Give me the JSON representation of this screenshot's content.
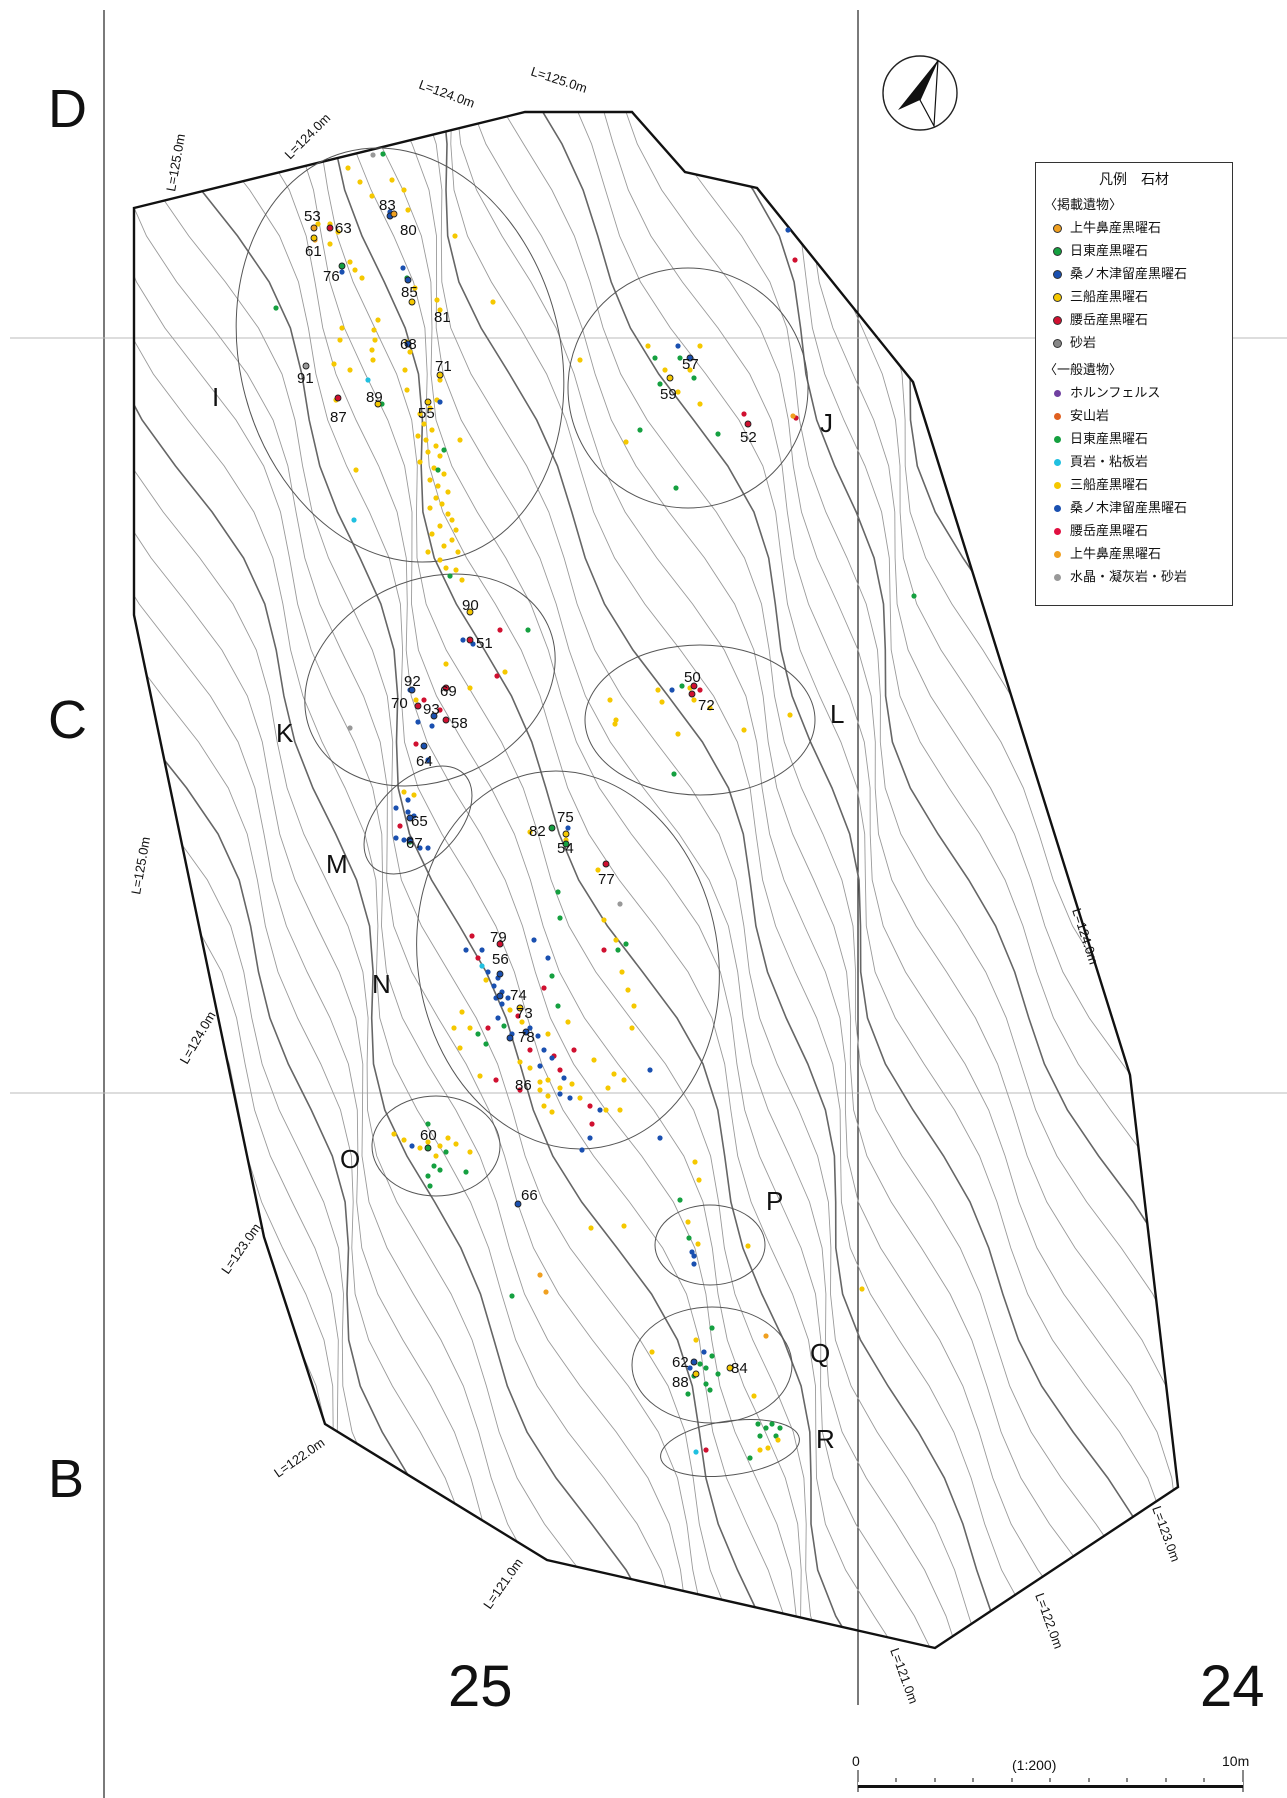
{
  "legend": {
    "title": "凡例　石材",
    "group1_title": "〈掲載遺物〉",
    "group1": [
      {
        "label": "上牛鼻産黒曜石",
        "color": "#f0a020"
      },
      {
        "label": "日東産黒曜石",
        "color": "#15a040"
      },
      {
        "label": "桑ノ木津留産黒曜石",
        "color": "#1a50b0"
      },
      {
        "label": "三船産黒曜石",
        "color": "#f5c800"
      },
      {
        "label": "腰岳産黒曜石",
        "color": "#d01030"
      },
      {
        "label": "砂岩",
        "color": "#888888"
      }
    ],
    "group2_title": "〈一般遺物〉",
    "group2": [
      {
        "label": "ホルンフェルス",
        "color": "#7040a0"
      },
      {
        "label": "安山岩",
        "color": "#e06020"
      },
      {
        "label": "日東産黒曜石",
        "color": "#15a040"
      },
      {
        "label": "頁岩・粘板岩",
        "color": "#20c0e0"
      },
      {
        "label": "三船産黒曜石",
        "color": "#f5c800"
      },
      {
        "label": "桑ノ木津留産黒曜石",
        "color": "#1a50b0"
      },
      {
        "label": "腰岳産黒曜石",
        "color": "#e01040"
      },
      {
        "label": "上牛鼻産黒曜石",
        "color": "#f0a020"
      },
      {
        "label": "水晶・凝灰岩・砂岩",
        "color": "#999999"
      }
    ]
  },
  "grid_rows": [
    "D",
    "C",
    "B"
  ],
  "grid_columns": [
    "25",
    "24"
  ],
  "areas": [
    "I",
    "J",
    "K",
    "L",
    "M",
    "N",
    "O",
    "P",
    "Q",
    "R"
  ],
  "contour_labels": [
    "L=125.0m",
    "L=124.0m",
    "L=124.0m",
    "L=125.0m",
    "L=125.0m",
    "L=124.0m",
    "L=124.0m",
    "L=123.0m",
    "L=122.0m",
    "L=121.0m",
    "L=121.0m",
    "L=122.0m",
    "L=123.0m"
  ],
  "point_labels": [
    "53",
    "63",
    "61",
    "76",
    "83",
    "80",
    "85",
    "81",
    "68",
    "91",
    "71",
    "87",
    "89",
    "55",
    "57",
    "59",
    "52",
    "90",
    "51",
    "92",
    "69",
    "70",
    "93",
    "58",
    "64",
    "50",
    "72",
    "65",
    "67",
    "82",
    "75",
    "54",
    "77",
    "79",
    "56",
    "74",
    "73",
    "78",
    "86",
    "60",
    "66",
    "62",
    "84",
    "88"
  ],
  "scale": {
    "start": "0",
    "ratio": "(1:200)",
    "end": "10m"
  },
  "north_arrow": "north-arrow"
}
